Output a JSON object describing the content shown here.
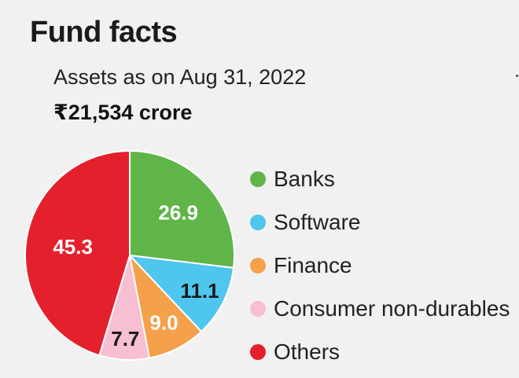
{
  "header": {
    "title": "Fund facts",
    "subtitle": "Assets as on Aug 31, 2022",
    "total": "₹21,534 crore"
  },
  "chart_data": {
    "type": "pie",
    "categories": [
      "Banks",
      "Software",
      "Finance",
      "Consumer non-durables",
      "Others"
    ],
    "values": [
      26.9,
      11.1,
      9.0,
      7.7,
      45.3
    ],
    "value_labels": [
      "26.9",
      "11.1",
      "9.0",
      "7.7",
      "45.3"
    ],
    "colors": [
      "#5fb548",
      "#4fc6ee",
      "#f5a04a",
      "#f8bed2",
      "#e4202c"
    ],
    "label_colors": [
      "#ffffff",
      "#1a1a1a",
      "#ffffff",
      "#1a1a1a",
      "#ffffff"
    ],
    "start_angle_deg": 0,
    "direction": "clockwise",
    "legend": "right"
  }
}
